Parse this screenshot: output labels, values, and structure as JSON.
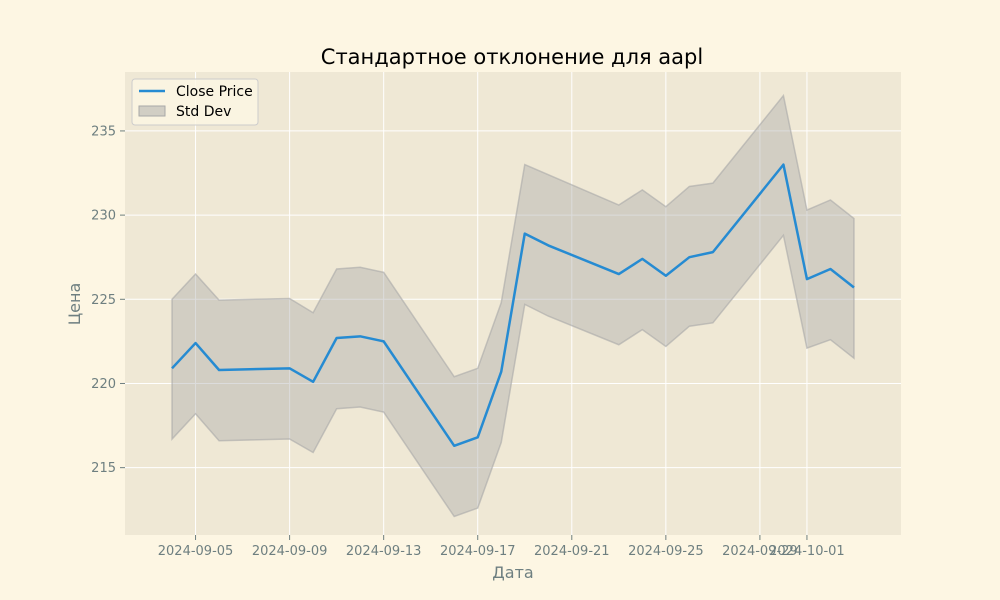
{
  "colors": {
    "figure_bg": "#fdf6e3",
    "plot_bg": "#efe8d5",
    "grid": "#ffffff",
    "line": "#268bd2",
    "band_fill": "#a8a8a8",
    "band_edge": "#a8a8a8",
    "tick_text": "#6e7f80"
  },
  "chart_data": {
    "type": "line",
    "title": "Стандартное отклонение для aapl",
    "xlabel": "Дата",
    "ylabel": "Цена",
    "x_range": [
      "2024-09-02",
      "2024-10-05"
    ],
    "ylim": [
      211,
      238.5
    ],
    "grid": true,
    "legend_position": "top-left",
    "x_ticks": [
      "2024-09-05",
      "2024-09-09",
      "2024-09-13",
      "2024-09-17",
      "2024-09-21",
      "2024-09-25",
      "2024-09-29",
      "2024-10-01"
    ],
    "y_ticks": [
      215,
      220,
      225,
      230,
      235
    ],
    "series": [
      {
        "name": "Close Price",
        "kind": "line",
        "points": [
          [
            "2024-09-04",
            220.9
          ],
          [
            "2024-09-05",
            222.4
          ],
          [
            "2024-09-06",
            220.8
          ],
          [
            "2024-09-09",
            220.9
          ],
          [
            "2024-09-10",
            220.1
          ],
          [
            "2024-09-11",
            222.7
          ],
          [
            "2024-09-12",
            222.8
          ],
          [
            "2024-09-13",
            222.5
          ],
          [
            "2024-09-16",
            216.3
          ],
          [
            "2024-09-17",
            216.8
          ],
          [
            "2024-09-18",
            220.7
          ],
          [
            "2024-09-19",
            228.9
          ],
          [
            "2024-09-20",
            228.2
          ],
          [
            "2024-09-23",
            226.5
          ],
          [
            "2024-09-24",
            227.4
          ],
          [
            "2024-09-25",
            226.4
          ],
          [
            "2024-09-26",
            227.5
          ],
          [
            "2024-09-27",
            227.8
          ],
          [
            "2024-09-30",
            233.0
          ],
          [
            "2024-10-01",
            226.2
          ],
          [
            "2024-10-02",
            226.8
          ],
          [
            "2024-10-03",
            225.7
          ]
        ]
      },
      {
        "name": "Std Dev",
        "kind": "band",
        "points": [
          [
            "2024-09-04",
            216.7,
            225.0
          ],
          [
            "2024-09-05",
            218.2,
            226.5
          ],
          [
            "2024-09-06",
            216.6,
            224.95
          ],
          [
            "2024-09-09",
            216.7,
            225.05
          ],
          [
            "2024-09-10",
            215.9,
            224.2
          ],
          [
            "2024-09-11",
            218.5,
            226.8
          ],
          [
            "2024-09-12",
            218.6,
            226.9
          ],
          [
            "2024-09-13",
            218.3,
            226.6
          ],
          [
            "2024-09-16",
            212.1,
            220.4
          ],
          [
            "2024-09-17",
            212.6,
            220.9
          ],
          [
            "2024-09-18",
            216.5,
            224.8
          ],
          [
            "2024-09-19",
            224.7,
            233.0
          ],
          [
            "2024-09-20",
            224.0,
            232.4
          ],
          [
            "2024-09-23",
            222.3,
            230.6
          ],
          [
            "2024-09-24",
            223.2,
            231.5
          ],
          [
            "2024-09-25",
            222.2,
            230.5
          ],
          [
            "2024-09-26",
            223.4,
            231.7
          ],
          [
            "2024-09-27",
            223.6,
            231.9
          ],
          [
            "2024-09-30",
            228.8,
            237.1
          ],
          [
            "2024-10-01",
            222.1,
            230.3
          ],
          [
            "2024-10-02",
            222.6,
            230.9
          ],
          [
            "2024-10-03",
            221.5,
            229.8
          ]
        ]
      }
    ]
  }
}
